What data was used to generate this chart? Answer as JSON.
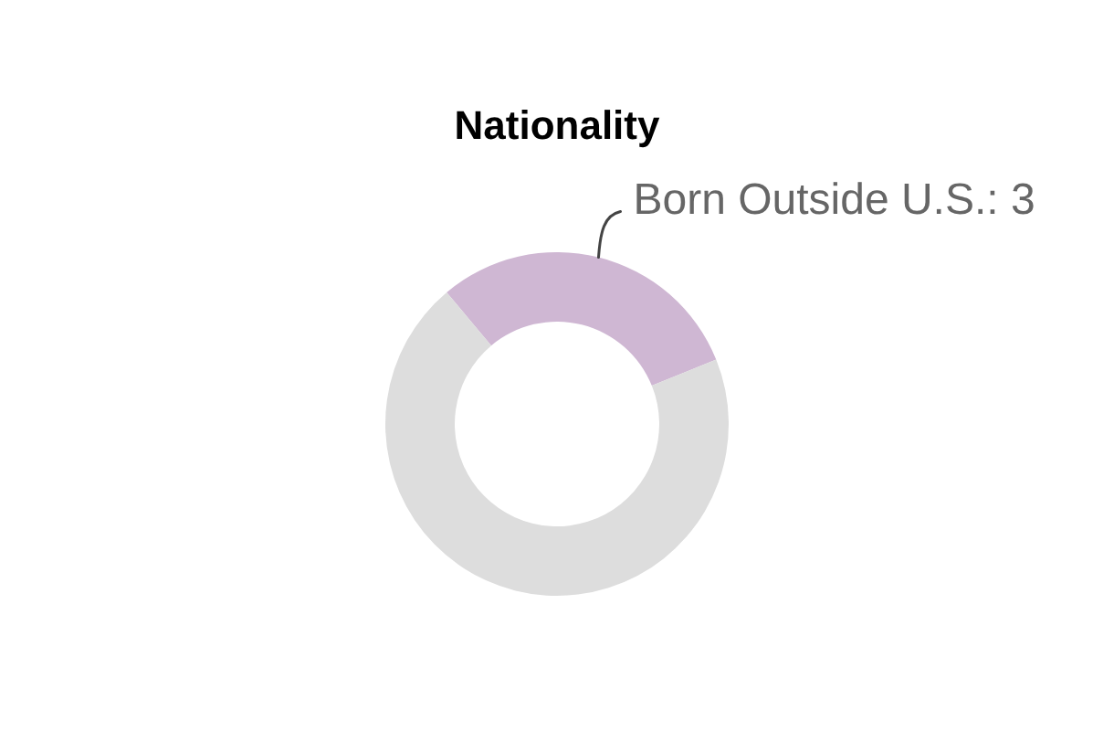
{
  "chart_data": {
    "type": "donut",
    "title": "Nationality",
    "categories": [
      "Born Outside U.S.",
      null
    ],
    "values": [
      3,
      7
    ],
    "colors": [
      "#cfb7d3",
      "#dddddd"
    ],
    "value_labels": [
      "3",
      null
    ]
  }
}
